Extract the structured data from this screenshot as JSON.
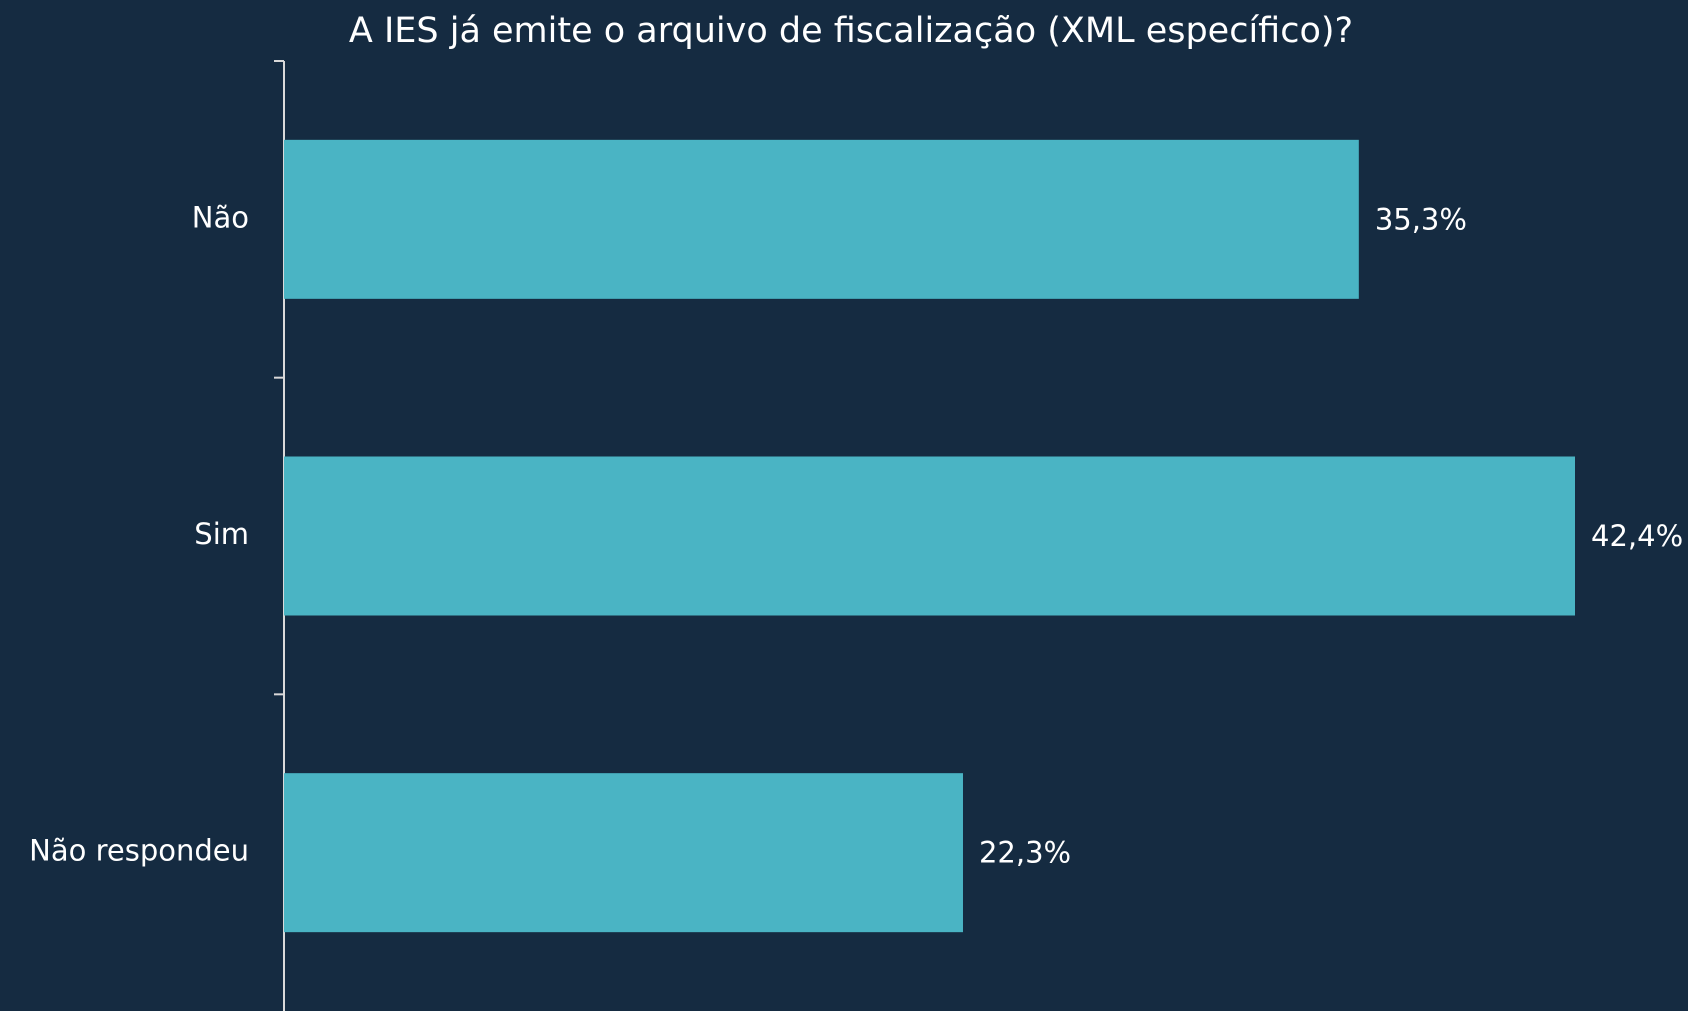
{
  "chart_data": {
    "type": "bar",
    "orientation": "horizontal",
    "title": "A IES já emite o arquivo de fiscalização (XML específico)?",
    "categories": [
      "Não",
      "Sim",
      "Não respondeu"
    ],
    "values": [
      35.3,
      42.4,
      22.3
    ],
    "value_labels": [
      "35,3%",
      "42,4%",
      "22,3%"
    ],
    "color": "#4ab4c4"
  }
}
